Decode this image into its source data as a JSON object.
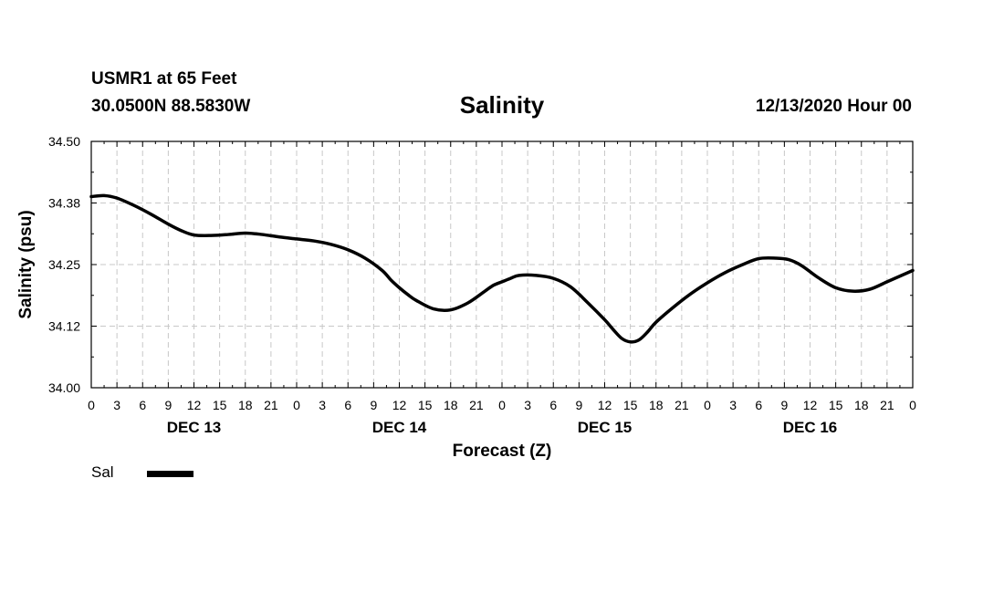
{
  "header": {
    "station": "USMR1 at 65 Feet",
    "coords": "30.0500N 88.5830W",
    "title": "Salinity",
    "datetime": "12/13/2020 Hour 00"
  },
  "legend": {
    "label": "Sal"
  },
  "chart_data": {
    "type": "line",
    "title": "Salinity",
    "xlabel": "Forecast (Z)",
    "ylabel": "Salinity (psu)",
    "ylim": [
      34.0,
      34.5
    ],
    "yticks": [
      "34.00",
      "34.12",
      "34.25",
      "34.38",
      "34.50"
    ],
    "xlim_hours": [
      0,
      96
    ],
    "xtick_step_hours": 3,
    "xtick_labels": [
      "0",
      "3",
      "6",
      "9",
      "12",
      "15",
      "18",
      "21",
      "0",
      "3",
      "6",
      "9",
      "12",
      "15",
      "18",
      "21",
      "0",
      "3",
      "6",
      "9",
      "12",
      "15",
      "18",
      "21",
      "0",
      "3",
      "6",
      "9",
      "12",
      "15",
      "18",
      "21",
      "0"
    ],
    "day_labels": [
      {
        "text": "DEC 13",
        "hour": 12
      },
      {
        "text": "DEC 14",
        "hour": 36
      },
      {
        "text": "DEC 15",
        "hour": 60
      },
      {
        "text": "DEC 16",
        "hour": 84
      }
    ],
    "grid": true,
    "legend_position": "bottom-left",
    "series": [
      {
        "name": "Sal",
        "color": "#000000",
        "x": [
          0,
          1.5,
          3,
          5,
          7,
          9,
          10.5,
          12,
          14,
          16,
          18,
          20,
          22,
          24,
          26,
          28,
          30,
          32,
          34,
          35,
          36,
          37,
          38,
          40,
          42,
          44,
          46,
          47,
          48,
          49,
          50,
          52,
          54,
          56,
          58,
          60,
          61,
          62,
          63,
          64,
          65,
          66,
          68,
          70,
          72,
          74,
          76,
          78,
          80,
          81.5,
          83,
          85,
          87,
          89,
          91,
          93,
          96
        ],
        "y": [
          34.388,
          34.39,
          34.385,
          34.37,
          34.352,
          34.332,
          34.319,
          34.31,
          34.309,
          34.311,
          34.314,
          34.311,
          34.306,
          34.302,
          34.298,
          34.291,
          34.28,
          34.263,
          34.238,
          34.219,
          34.203,
          34.189,
          34.177,
          34.16,
          34.158,
          34.172,
          34.196,
          34.208,
          34.215,
          34.222,
          34.228,
          34.228,
          34.222,
          34.205,
          34.173,
          34.138,
          34.118,
          34.1,
          34.093,
          34.097,
          34.113,
          34.133,
          34.163,
          34.19,
          34.213,
          34.233,
          34.249,
          34.262,
          34.263,
          34.26,
          34.248,
          34.223,
          34.203,
          34.196,
          34.2,
          34.215,
          34.238
        ]
      }
    ]
  }
}
